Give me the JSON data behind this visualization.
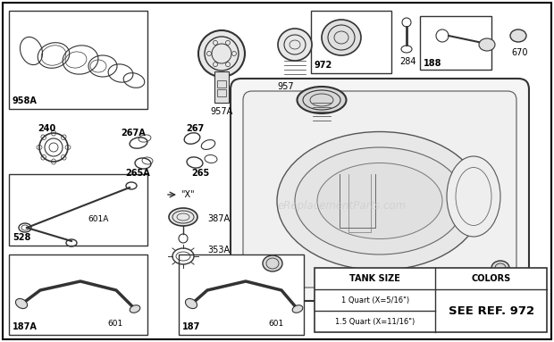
{
  "bg": "#ffffff",
  "line_color": "#333333",
  "label_color": "#000000",
  "watermark_text": "eReplacementParts.com",
  "watermark_color": "#cccccc",
  "table": {
    "tank_size_header": "TANK SIZE",
    "colors_header": "COLORS",
    "row1": "1 Quart (X=5/16\")",
    "row2": "1.5 Quart (X=11/16\")",
    "see_ref": "SEE REF. 972"
  }
}
